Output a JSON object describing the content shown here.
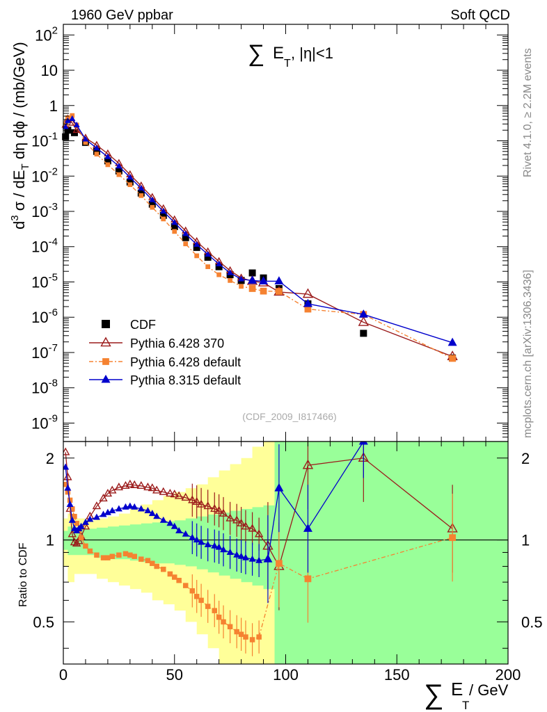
{
  "header": {
    "left": "1960 GeV ppbar",
    "right": "Soft QCD"
  },
  "side_labels": {
    "rivet": "Rivet 4.1.0, ≥ 2.2M events",
    "mcplots": "mcplots.cern.ch [arXiv:1306.3436]"
  },
  "analysis_tag": "(CDF_2009_I817466)",
  "colors": {
    "cdf": "#000000",
    "p6_370": "#9b1b1b",
    "p6_default": "#f58231",
    "p8": "#0000cc",
    "band_yellow": "#ffff99",
    "band_green": "#99ff99"
  },
  "chart_data": [
    {
      "type": "line",
      "title_prefix": "∑",
      "title_main": "E",
      "title_sub": "T",
      "title_suffix": ", |η|<1",
      "yscale": "log",
      "ylabel_parts": {
        "a": "d",
        "a_sup": "3",
        "b": " σ / dE",
        "b_sub": "T",
        "c": " dη dϕ / (mb/GeV)"
      },
      "xlim": [
        0,
        200
      ],
      "ylim": [
        3e-10,
        200
      ],
      "yticks": [
        {
          "value": 1e-09,
          "base": "10",
          "exp": "-9"
        },
        {
          "value": 1e-08,
          "base": "10",
          "exp": "-8"
        },
        {
          "value": 1e-07,
          "base": "10",
          "exp": "-7"
        },
        {
          "value": 1e-06,
          "base": "10",
          "exp": "-6"
        },
        {
          "value": 1e-05,
          "base": "10",
          "exp": "-5"
        },
        {
          "value": 0.0001,
          "base": "10",
          "exp": "-4"
        },
        {
          "value": 0.001,
          "base": "10",
          "exp": "-3"
        },
        {
          "value": 0.01,
          "base": "10",
          "exp": "-2"
        },
        {
          "value": 0.1,
          "base": "10",
          "exp": "-1"
        },
        {
          "value": 1,
          "base": "1",
          "exp": ""
        },
        {
          "value": 10,
          "base": "10",
          "exp": ""
        },
        {
          "value": 100,
          "base": "10",
          "exp": "2"
        }
      ],
      "legend_position": "bottom-left",
      "series": [
        {
          "name": "CDF",
          "marker": "square",
          "color_key": "cdf",
          "x": [
            1,
            2,
            5,
            10,
            15,
            20,
            25,
            30,
            35,
            40,
            45,
            50,
            55,
            60,
            65,
            70,
            75,
            80,
            85,
            90,
            97,
            110,
            135,
            175
          ],
          "y": [
            0.13,
            0.2,
            0.17,
            0.09,
            0.05,
            0.027,
            0.014,
            0.0068,
            0.0033,
            0.0016,
            0.00077,
            0.00037,
            0.00018,
            9.5e-05,
            5e-05,
            2.7e-05,
            1.6e-05,
            1.1e-05,
            1.8e-05,
            1.3e-05,
            6.5e-06,
            2.4e-06,
            3.5e-07,
            7e-08
          ]
        },
        {
          "name": "Pythia 6.428 370",
          "marker": "triangle-open",
          "color_key": "p6_370",
          "x": [
            1,
            2,
            4,
            6,
            10,
            15,
            20,
            25,
            30,
            35,
            40,
            45,
            50,
            55,
            60,
            65,
            70,
            75,
            80,
            85,
            90,
            97,
            110,
            135,
            175
          ],
          "y": [
            0.28,
            0.42,
            0.32,
            0.2,
            0.12,
            0.075,
            0.043,
            0.023,
            0.011,
            0.0053,
            0.0025,
            0.0012,
            0.00058,
            0.00028,
            0.00014,
            7.2e-05,
            3.8e-05,
            2.1e-05,
            1.3e-05,
            1.05e-05,
            9.5e-06,
            5.2e-06,
            4.5e-06,
            7.2e-07,
            7.7e-08
          ]
        },
        {
          "name": "Pythia 6.428 default",
          "marker": "square-small",
          "color_key": "p6_default",
          "x": [
            1,
            2,
            4,
            6,
            10,
            15,
            20,
            25,
            30,
            35,
            40,
            45,
            50,
            55,
            60,
            65,
            70,
            75,
            80,
            85,
            90,
            97,
            110,
            135,
            175
          ],
          "y": [
            0.3,
            0.45,
            0.52,
            0.28,
            0.09,
            0.042,
            0.021,
            0.011,
            0.0057,
            0.0028,
            0.0013,
            0.00061,
            0.00027,
            0.00012,
            5.5e-05,
            2.7e-05,
            1.6e-05,
            1.1e-05,
            7.5e-06,
            6.5e-06,
            5.5e-06,
            5.4e-06,
            1.7e-06,
            1.2e-06,
            6.8e-08
          ]
        },
        {
          "name": "Pythia 8.315 default",
          "marker": "triangle-filled",
          "color_key": "p8",
          "x": [
            1,
            2,
            4,
            6,
            10,
            15,
            20,
            25,
            30,
            35,
            40,
            45,
            50,
            55,
            60,
            65,
            70,
            75,
            80,
            85,
            90,
            97,
            110,
            135,
            175
          ],
          "y": [
            0.25,
            0.37,
            0.42,
            0.28,
            0.11,
            0.062,
            0.035,
            0.019,
            0.0092,
            0.0045,
            0.0021,
            0.001,
            0.00048,
            0.00023,
            0.000115,
            6e-05,
            3.2e-05,
            1.8e-05,
            1.2e-05,
            1.1e-05,
            1.05e-05,
            1.05e-05,
            2.4e-06,
            1.2e-06,
            1.9e-07
          ]
        }
      ]
    },
    {
      "type": "line",
      "ylabel": "Ratio to CDF",
      "xlabel_prefix": "∑",
      "xlabel_main": "E",
      "xlabel_sub": "T",
      "xlabel_suffix": " / GeV",
      "yscale": "log",
      "ylim": [
        0.35,
        2.3
      ],
      "xlim": [
        0,
        200
      ],
      "xticks": [
        0,
        50,
        100,
        150,
        200
      ],
      "yticks": [
        0.5,
        1,
        2
      ],
      "yticklabels": [
        "0.5",
        "1",
        "2"
      ],
      "reference_line": 1,
      "band": {
        "x": [
          0,
          2,
          5,
          10,
          15,
          20,
          25,
          30,
          35,
          40,
          45,
          50,
          55,
          60,
          65,
          70,
          75,
          80,
          85,
          90,
          95,
          100,
          120,
          140,
          160,
          180,
          200
        ],
        "yellow_lo": [
          0.8,
          0.7,
          0.75,
          0.75,
          0.72,
          0.7,
          0.68,
          0.66,
          0.64,
          0.6,
          0.58,
          0.55,
          0.5,
          0.45,
          0.4,
          0.35,
          0.35,
          0.35,
          0.35,
          0.35,
          0.35,
          0.35,
          0.35,
          0.35,
          0.35,
          0.35,
          0.35
        ],
        "yellow_hi": [
          1.2,
          1.25,
          1.2,
          1.18,
          1.2,
          1.22,
          1.25,
          1.3,
          1.35,
          1.4,
          1.45,
          1.5,
          1.55,
          1.6,
          1.7,
          1.8,
          1.9,
          2.0,
          2.2,
          2.3,
          2.3,
          2.3,
          2.3,
          2.3,
          2.3,
          2.3,
          2.3
        ],
        "green_lo": [
          0.92,
          0.88,
          0.88,
          0.88,
          0.86,
          0.85,
          0.85,
          0.84,
          0.83,
          0.82,
          0.82,
          0.81,
          0.8,
          0.78,
          0.76,
          0.74,
          0.72,
          0.7,
          0.68,
          0.66,
          0.35,
          0.35,
          0.35,
          0.35,
          0.35,
          0.35,
          0.35
        ],
        "green_hi": [
          1.08,
          1.12,
          1.1,
          1.1,
          1.11,
          1.12,
          1.13,
          1.14,
          1.15,
          1.16,
          1.17,
          1.18,
          1.2,
          1.22,
          1.24,
          1.26,
          1.28,
          1.3,
          1.32,
          1.34,
          2.3,
          2.3,
          2.3,
          2.3,
          2.3,
          2.3,
          2.3
        ]
      },
      "series": [
        {
          "name": "Pythia 6.428 370",
          "marker": "triangle-open",
          "color_key": "p6_370",
          "x": [
            1,
            2,
            3,
            4,
            5,
            6,
            7,
            8,
            10,
            12,
            15,
            18,
            20,
            22,
            25,
            28,
            30,
            32,
            35,
            38,
            40,
            42,
            45,
            48,
            50,
            52,
            55,
            58,
            60,
            62,
            65,
            68,
            70,
            72,
            75,
            78,
            80,
            82,
            85,
            88,
            92,
            97,
            110,
            135,
            175
          ],
          "y": [
            2.1,
            1.7,
            1.3,
            1.05,
            0.98,
            0.97,
            0.99,
            1.03,
            1.12,
            1.22,
            1.33,
            1.42,
            1.48,
            1.52,
            1.56,
            1.58,
            1.6,
            1.59,
            1.58,
            1.56,
            1.55,
            1.52,
            1.5,
            1.48,
            1.47,
            1.45,
            1.43,
            1.4,
            1.38,
            1.35,
            1.33,
            1.3,
            1.28,
            1.25,
            1.2,
            1.18,
            1.15,
            1.12,
            1.1,
            1.05,
            0.95,
            0.8,
            1.88,
            2.0,
            1.1
          ]
        },
        {
          "name": "Pythia 6.428 default",
          "marker": "square-small",
          "color_key": "p6_default",
          "x": [
            1,
            2,
            3,
            4,
            5,
            6,
            7,
            8,
            10,
            12,
            15,
            18,
            20,
            22,
            25,
            28,
            30,
            32,
            35,
            38,
            40,
            42,
            45,
            48,
            50,
            52,
            55,
            58,
            60,
            62,
            65,
            68,
            70,
            72,
            75,
            78,
            80,
            82,
            85,
            88,
            97,
            110,
            175
          ],
          "y": [
            1.6,
            1.5,
            1.4,
            1.3,
            1.22,
            1.15,
            1.08,
            1.02,
            0.95,
            0.91,
            0.88,
            0.86,
            0.86,
            0.87,
            0.88,
            0.89,
            0.88,
            0.87,
            0.85,
            0.84,
            0.82,
            0.8,
            0.78,
            0.75,
            0.73,
            0.71,
            0.68,
            0.65,
            0.62,
            0.6,
            0.57,
            0.55,
            0.52,
            0.5,
            0.48,
            0.46,
            0.45,
            0.44,
            0.43,
            0.44,
            0.82,
            0.72,
            1.02
          ]
        },
        {
          "name": "Pythia 8.315 default",
          "marker": "triangle-filled",
          "color_key": "p8",
          "x": [
            1,
            2,
            3,
            4,
            5,
            6,
            7,
            8,
            10,
            12,
            15,
            18,
            20,
            22,
            25,
            28,
            30,
            32,
            35,
            38,
            40,
            42,
            45,
            48,
            50,
            52,
            55,
            58,
            60,
            62,
            65,
            68,
            70,
            72,
            75,
            78,
            80,
            82,
            85,
            88,
            92,
            97,
            110,
            135
          ],
          "y": [
            1.85,
            1.55,
            1.35,
            1.18,
            1.1,
            1.08,
            1.1,
            1.12,
            1.16,
            1.19,
            1.21,
            1.24,
            1.26,
            1.28,
            1.3,
            1.32,
            1.33,
            1.32,
            1.3,
            1.28,
            1.25,
            1.22,
            1.18,
            1.15,
            1.12,
            1.08,
            1.05,
            1.02,
            1.0,
            0.98,
            0.96,
            0.95,
            0.94,
            0.92,
            0.9,
            0.88,
            0.87,
            0.86,
            0.85,
            0.84,
            0.85,
            1.55,
            1.1,
            2.45
          ]
        }
      ]
    }
  ]
}
